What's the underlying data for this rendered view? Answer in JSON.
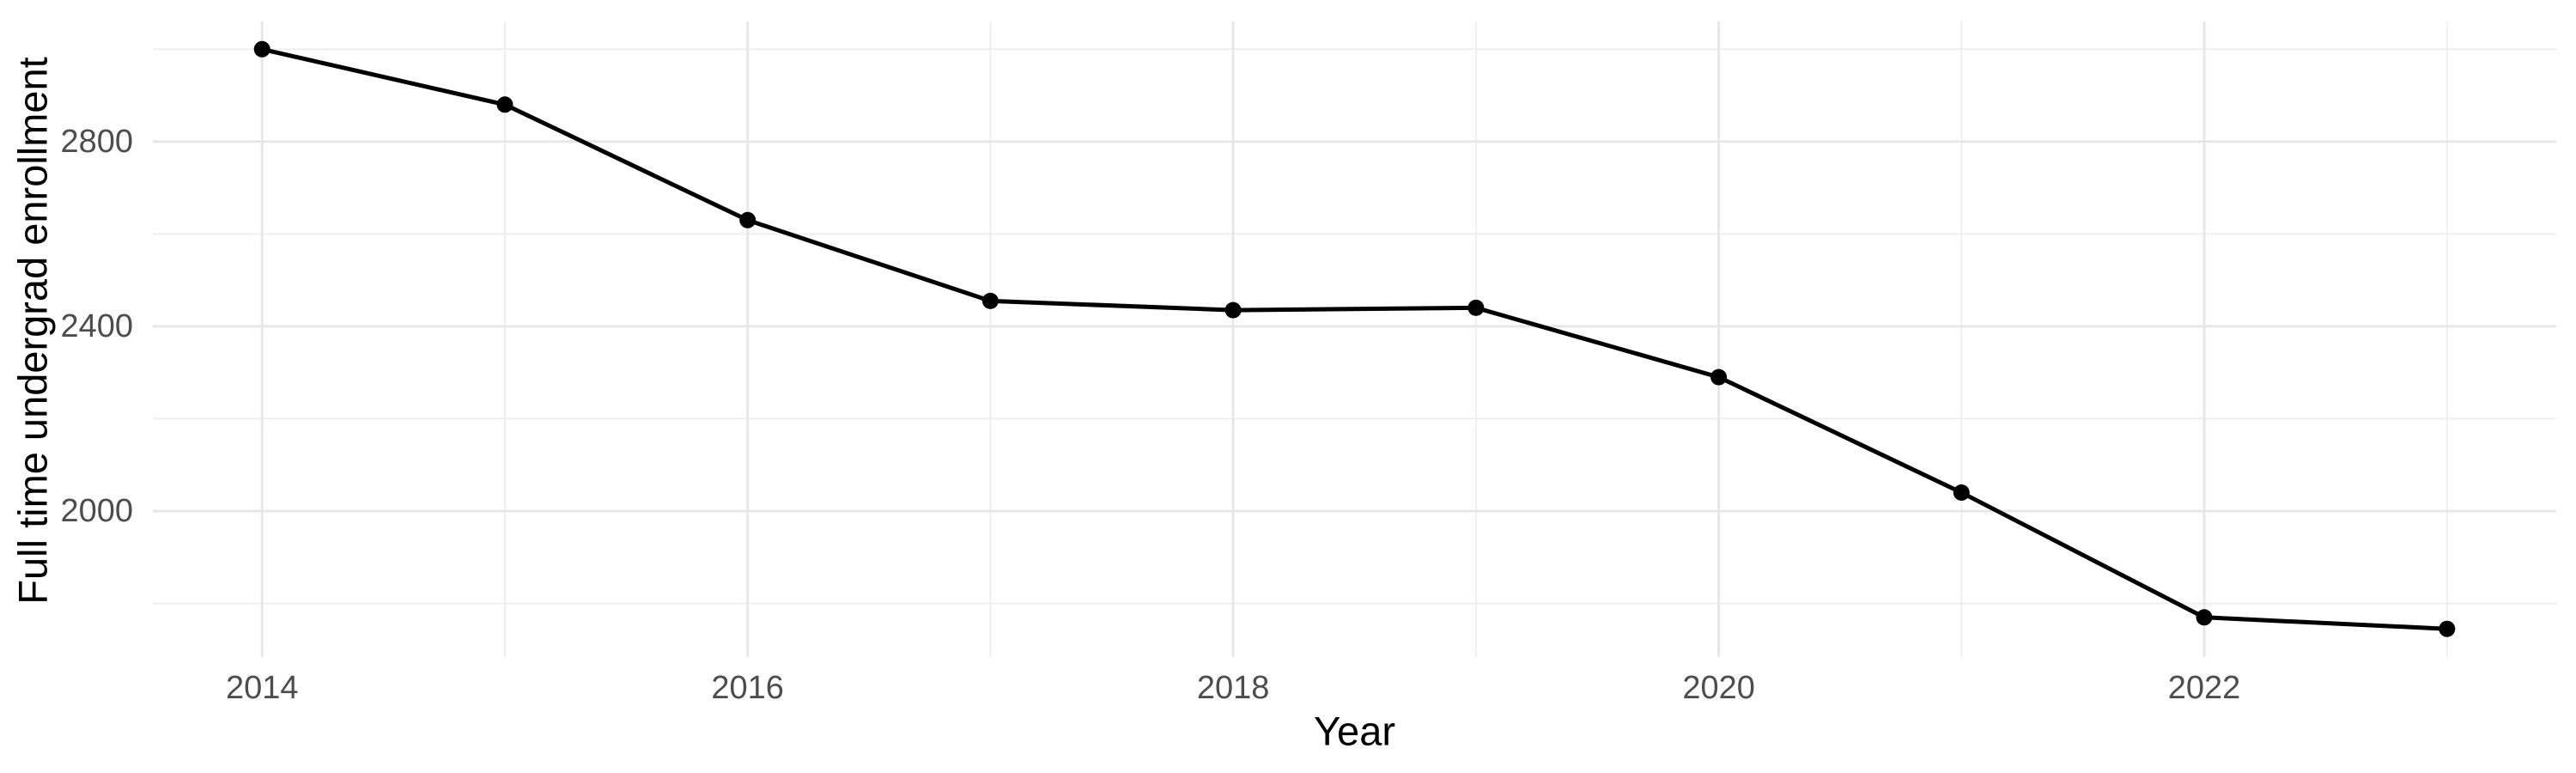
{
  "chart_data": {
    "type": "line",
    "title": "",
    "xlabel": "Year",
    "ylabel": "Full time undergrad enrollment",
    "x": [
      2014,
      2015,
      2016,
      2017,
      2018,
      2019,
      2020,
      2021,
      2022,
      2023
    ],
    "values": [
      3000,
      2880,
      2630,
      2455,
      2435,
      2440,
      2290,
      2040,
      1770,
      1745
    ],
    "x_major_ticks": [
      2014,
      2016,
      2018,
      2020,
      2022
    ],
    "x_minor_gridlines": [
      2015,
      2017,
      2019,
      2021,
      2023
    ],
    "y_major_ticks": [
      2000,
      2400,
      2800
    ],
    "y_minor_gridlines": [
      1800,
      2200,
      2600,
      3000
    ],
    "x_range": [
      2013.55,
      2023.45
    ],
    "y_range": [
      1684,
      3060
    ],
    "grid": true,
    "legend": "none",
    "marker": "point",
    "colors": {
      "line": "#000000",
      "point": "#000000",
      "grid_major": "#e6e6e6",
      "grid_minor": "#ededed",
      "tick_label": "#4d4d4d",
      "axis_title": "#000000",
      "background": "#ffffff"
    }
  }
}
